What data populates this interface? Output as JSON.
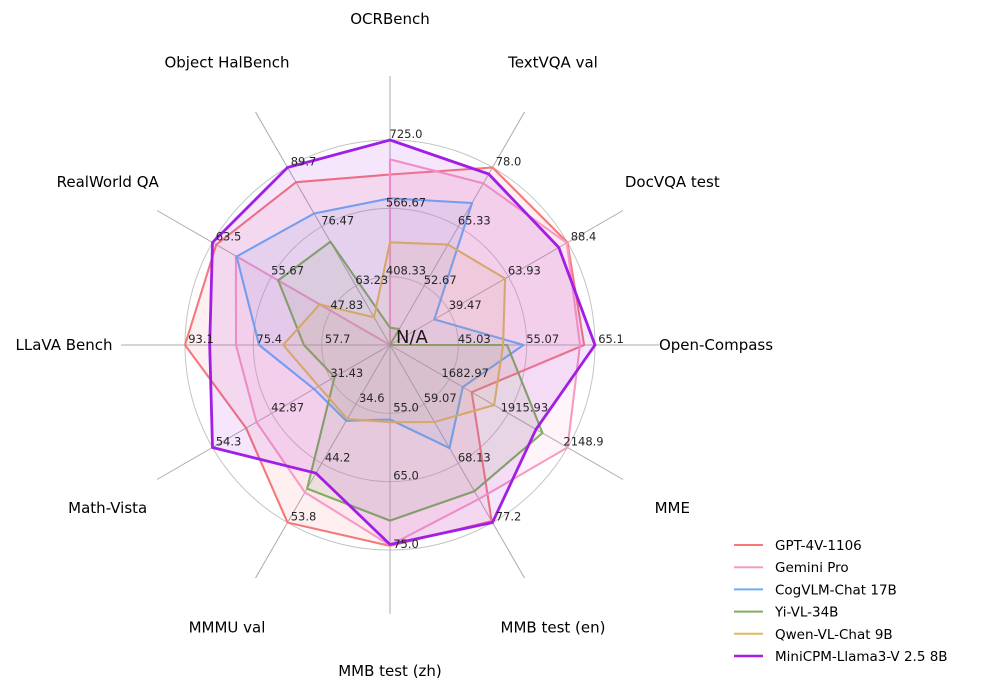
{
  "chart_data": {
    "type": "radar",
    "title": "",
    "center_label": "N/A",
    "grid": "3 concentric circles with 12 radial spokes",
    "grid_color": "#c4c4c4",
    "spoke_color": "#ababab",
    "background_color": "#ffffff",
    "legend_position": "lower right",
    "axes": [
      {
        "label": "OCRBench",
        "min": 250,
        "max": 725,
        "ticks": [
          "725.0",
          "566.67",
          "408.33"
        ]
      },
      {
        "label": "TextVQA val",
        "min": 40,
        "max": 78,
        "ticks": [
          "78.0",
          "65.33",
          "52.67"
        ]
      },
      {
        "label": "DocVQA test",
        "min": 15,
        "max": 88.4,
        "ticks": [
          "88.4",
          "63.93",
          "39.47"
        ]
      },
      {
        "label": "Open-Compass",
        "min": 35,
        "max": 65.1,
        "ticks": [
          "65.1",
          "55.07",
          "45.03"
        ]
      },
      {
        "label": "MME",
        "min": 1450,
        "max": 2148.9,
        "ticks": [
          "2148.9",
          "1915.93",
          "1682.97"
        ]
      },
      {
        "label": "MMB test (en)",
        "min": 50,
        "max": 77.2,
        "ticks": [
          "77.2",
          "68.13",
          "59.07"
        ]
      },
      {
        "label": "MMB test (zh)",
        "min": 45,
        "max": 75,
        "ticks": [
          "75.0",
          "65.0",
          "55.0"
        ]
      },
      {
        "label": "MMMU val",
        "min": 25,
        "max": 53.8,
        "ticks": [
          "53.8",
          "44.2",
          "34.6"
        ]
      },
      {
        "label": "Math-Vista",
        "min": 20,
        "max": 54.3,
        "ticks": [
          "54.3",
          "42.87",
          "31.43"
        ]
      },
      {
        "label": "LLaVA Bench",
        "min": 40,
        "max": 93.1,
        "ticks": [
          "93.1",
          "75.4",
          "57.7"
        ]
      },
      {
        "label": "RealWorld QA",
        "min": 40,
        "max": 63.5,
        "ticks": [
          "63.5",
          "55.67",
          "47.83"
        ]
      },
      {
        "label": "Object HalBench",
        "min": 50,
        "max": 89.7,
        "ticks": [
          "89.7",
          "76.47",
          "63.23"
        ]
      }
    ],
    "series": [
      {
        "name": "GPT-4V-1106",
        "color": "#f4797b",
        "values": [
          645,
          78.0,
          88.4,
          63.5,
          1771.5,
          77.0,
          74.4,
          53.8,
          47.8,
          93.1,
          63.0,
          86.4
        ]
      },
      {
        "name": "Gemini Pro",
        "color": "#f79bc5",
        "values": [
          680,
          74.6,
          88.1,
          62.9,
          2148.9,
          73.6,
          74.3,
          48.9,
          45.8,
          79.9,
          60.4,
          null
        ]
      },
      {
        "name": "CogVLM-Chat 17B",
        "color": "#6fadf1",
        "values": [
          590,
          70.4,
          33.3,
          54.6,
          1736.6,
          65.8,
          55.9,
          37.3,
          34.7,
          73.9,
          60.3,
          79.4
        ]
      },
      {
        "name": "Yi-VL-34B",
        "color": "#7fae5e",
        "values": [
          290,
          43.4,
          null,
          52.2,
          2050.2,
          72.4,
          70.7,
          48.3,
          30.7,
          62.3,
          54.8,
          73.1
        ]
      },
      {
        "name": "Qwen-VL-Chat 9B",
        "color": "#ddb95f",
        "values": [
          488,
          61.5,
          62.6,
          51.6,
          1860.0,
          61.8,
          56.3,
          37.0,
          33.8,
          67.7,
          49.3,
          56.2
        ]
      },
      {
        "name": "MiniCPM-Llama3-V 2.5 8B",
        "color": "#a21de6",
        "values": [
          725,
          76.6,
          84.8,
          65.1,
          2024.6,
          77.2,
          74.2,
          45.8,
          54.3,
          86.7,
          63.5,
          89.7
        ]
      }
    ]
  }
}
